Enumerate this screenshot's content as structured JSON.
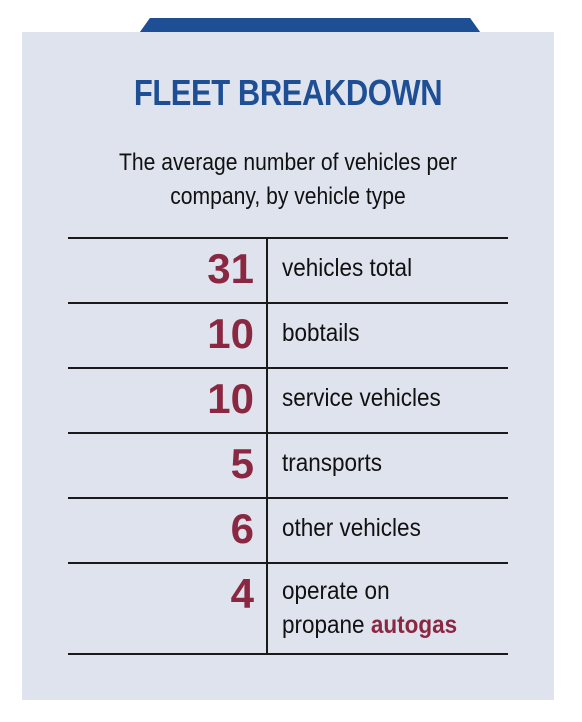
{
  "colors": {
    "panel_bg": "#dfe3ee",
    "title_blue": "#1e4f95",
    "value_maroon": "#8a2842",
    "rule": "#1a1a1a"
  },
  "chart_data": {
    "type": "table",
    "title": "FLEET BREAKDOWN",
    "subtitle_line1": "The average number of vehicles per",
    "subtitle_line2": "company, by vehicle type",
    "rows": [
      {
        "value": "31",
        "label": "vehicles total"
      },
      {
        "value": "10",
        "label": "bobtails"
      },
      {
        "value": "10",
        "label": "service vehicles"
      },
      {
        "value": "5",
        "label": "transports"
      },
      {
        "value": "6",
        "label": "other vehicles"
      },
      {
        "value": "4",
        "label_line1": "operate on",
        "label_line2_prefix": "propane ",
        "label_line2_accent": "autogas"
      }
    ]
  }
}
